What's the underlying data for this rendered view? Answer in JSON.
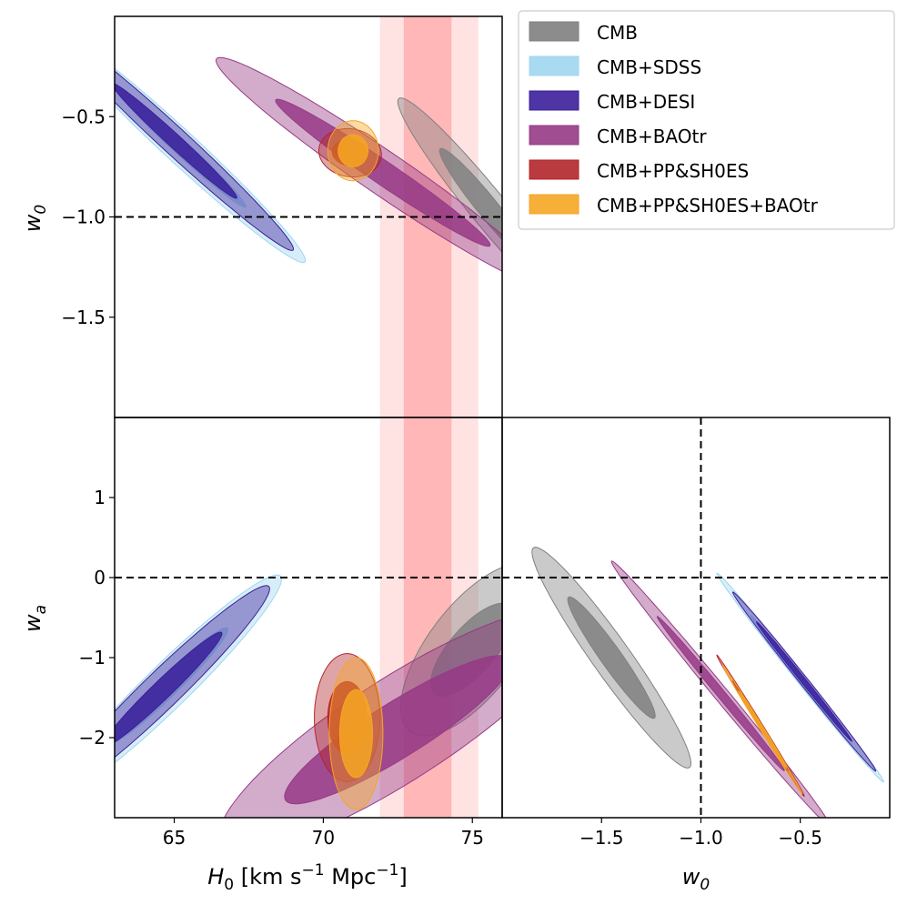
{
  "chart_data": {
    "type": "contour-triangle",
    "legend": [
      {
        "label": "CMB",
        "color": "#808080"
      },
      {
        "label": "CMB+SDSS",
        "color": "#9fd6ef"
      },
      {
        "label": "CMB+DESI",
        "color": "#3b1e9a"
      },
      {
        "label": "CMB+BAOtr",
        "color": "#963a86"
      },
      {
        "label": "CMB+PP&SH0ES",
        "color": "#b3262a"
      },
      {
        "label": "CMB+PP&SH0ES+BAOtr",
        "color": "#f5a623"
      }
    ],
    "panels": [
      {
        "id": "H0_w0",
        "xlim": [
          63,
          76
        ],
        "ylim": [
          -2.0,
          -0.0
        ],
        "yticks": [
          -0.5,
          -1.0,
          -1.5
        ],
        "ytick_labels": [
          "−0.5",
          "−1.0",
          "−1.5"
        ],
        "ylabel": "w",
        "ylabel_sub": "0",
        "hline": -1.0,
        "sh0es_band": {
          "center": 73.5,
          "sigma1": [
            72.7,
            74.3
          ],
          "sigma2": [
            71.9,
            75.2
          ]
        }
      },
      {
        "id": "H0_wa",
        "xlim": [
          63,
          76
        ],
        "ylim": [
          -3.0,
          2.0
        ],
        "xticks": [
          65,
          70,
          75
        ],
        "xtick_labels": [
          "65",
          "70",
          "75"
        ],
        "yticks": [
          1,
          0,
          -1,
          -2
        ],
        "ytick_labels": [
          "1",
          "0",
          "−1",
          "−2"
        ],
        "xlabel": "H",
        "xlabel_sub": "0",
        "xlabel_units": " [km s",
        "xlabel_exp": "−1",
        "xlabel_units2": " Mpc",
        "xlabel_exp2": "−1",
        "xlabel_close": "]",
        "ylabel": "w",
        "ylabel_sub": "a",
        "hline": 0,
        "sh0es_band": {
          "center": 73.5,
          "sigma1": [
            72.7,
            74.3
          ],
          "sigma2": [
            71.9,
            75.2
          ]
        }
      },
      {
        "id": "w0_wa",
        "xlim": [
          -2.0,
          -0.05
        ],
        "ylim": [
          -3.0,
          2.0
        ],
        "xticks": [
          -1.5,
          -1.0,
          -0.5
        ],
        "xtick_labels": [
          "−1.5",
          "−1.0",
          "−0.5"
        ],
        "xlabel": "w",
        "xlabel_sub": "0",
        "hline": 0,
        "vline": -1.0
      }
    ],
    "contours": [
      {
        "series": "CMB",
        "panel": "H0_w0",
        "center": [
          75.5,
          -0.95
        ],
        "slope": -0.175,
        "sigma1": [
          1.6,
          0.08
        ],
        "sigma2": [
          3.0,
          0.14
        ]
      },
      {
        "series": "CMB+SDSS",
        "panel": "H0_w0",
        "center": [
          65.2,
          -0.65
        ],
        "slope": -0.135,
        "sigma1": [
          2.2,
          0.05
        ],
        "sigma2": [
          4.2,
          0.11
        ]
      },
      {
        "series": "CMB+DESI",
        "panel": "H0_w0",
        "center": [
          65.0,
          -0.62
        ],
        "slope": -0.135,
        "sigma1": [
          2.1,
          0.045
        ],
        "sigma2": [
          4.0,
          0.09
        ]
      },
      {
        "series": "CMB+BAOtr",
        "panel": "H0_w0",
        "center": [
          72.0,
          -0.78
        ],
        "slope": -0.1,
        "sigma1": [
          3.6,
          0.07
        ],
        "sigma2": [
          5.6,
          0.13
        ]
      },
      {
        "series": "CMB+PP&SH0ES",
        "panel": "H0_w0",
        "center": [
          70.9,
          -0.68
        ],
        "slope": -0.01,
        "sigma1": [
          0.6,
          0.065
        ],
        "sigma2": [
          1.05,
          0.12
        ]
      },
      {
        "series": "CMB+PP&SH0ES+BAOtr",
        "panel": "H0_w0",
        "center": [
          71.0,
          -0.67
        ],
        "slope": 0.0,
        "sigma1": [
          0.5,
          0.08
        ],
        "sigma2": [
          0.85,
          0.15
        ]
      },
      {
        "series": "CMB",
        "panel": "H0_wa",
        "center": [
          75.0,
          -0.9
        ],
        "slope": 0.3,
        "sigma1": [
          1.4,
          0.4
        ],
        "sigma2": [
          2.4,
          0.8
        ]
      },
      {
        "series": "CMB+SDSS",
        "panel": "H0_wa",
        "center": [
          64.8,
          -1.35
        ],
        "slope": 0.35,
        "sigma1": [
          2.0,
          0.18
        ],
        "sigma2": [
          3.8,
          0.38
        ]
      },
      {
        "series": "CMB+DESI",
        "panel": "H0_wa",
        "center": [
          64.6,
          -1.4
        ],
        "slope": 0.35,
        "sigma1": [
          2.0,
          0.16
        ],
        "sigma2": [
          3.6,
          0.32
        ]
      },
      {
        "series": "CMB+BAOtr",
        "panel": "H0_wa",
        "center": [
          72.5,
          -1.9
        ],
        "slope": 0.22,
        "sigma1": [
          3.8,
          0.4
        ],
        "sigma2": [
          6.0,
          0.75
        ]
      },
      {
        "series": "CMB+PP&SH0ES",
        "panel": "H0_wa",
        "center": [
          70.8,
          -1.75
        ],
        "slope": 0.0,
        "sigma1": [
          0.65,
          0.45
        ],
        "sigma2": [
          1.1,
          0.8
        ]
      },
      {
        "series": "CMB+PP&SH0ES+BAOtr",
        "panel": "H0_wa",
        "center": [
          71.1,
          -1.95
        ],
        "slope": 0.0,
        "sigma1": [
          0.55,
          0.55
        ],
        "sigma2": [
          0.9,
          0.95
        ]
      },
      {
        "series": "CMB",
        "panel": "w0_wa",
        "center": [
          -1.45,
          -1.0
        ],
        "slope": -3.3,
        "sigma1": [
          0.22,
          0.22
        ],
        "sigma2": [
          0.4,
          0.4
        ]
      },
      {
        "series": "CMB+BAOtr",
        "panel": "w0_wa",
        "center": [
          -0.9,
          -1.45
        ],
        "slope": -3.0,
        "sigma1": [
          0.32,
          0.08
        ],
        "sigma2": [
          0.55,
          0.14
        ]
      },
      {
        "series": "CMB+SDSS",
        "panel": "w0_wa",
        "center": [
          -0.5,
          -1.25
        ],
        "slope": -3.1,
        "sigma1": [
          0.25,
          0.055
        ],
        "sigma2": [
          0.42,
          0.095
        ]
      },
      {
        "series": "CMB+DESI",
        "panel": "w0_wa",
        "center": [
          -0.48,
          -1.3
        ],
        "slope": -3.1,
        "sigma1": [
          0.24,
          0.05
        ],
        "sigma2": [
          0.36,
          0.085
        ]
      },
      {
        "series": "CMB+PP&SH0ES",
        "panel": "w0_wa",
        "center": [
          -0.7,
          -1.85
        ],
        "slope": -4.0,
        "sigma1": [
          0.14,
          0.035
        ],
        "sigma2": [
          0.22,
          0.05
        ]
      },
      {
        "series": "CMB+PP&SH0ES+BAOtr",
        "panel": "w0_wa",
        "center": [
          -0.69,
          -1.9
        ],
        "slope": -4.0,
        "sigma1": [
          0.12,
          0.03
        ],
        "sigma2": [
          0.2,
          0.045
        ]
      }
    ]
  }
}
